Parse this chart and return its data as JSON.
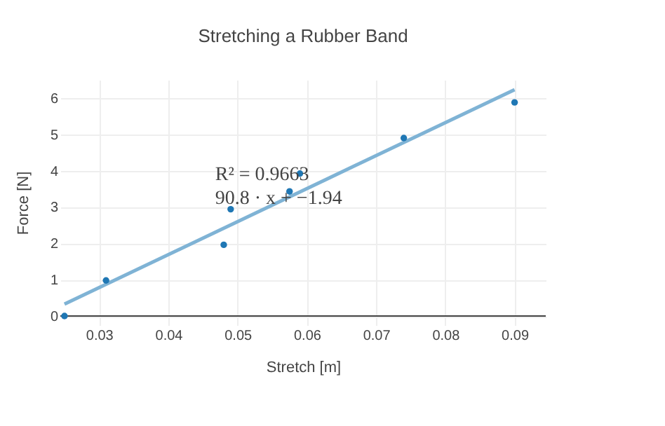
{
  "chart_data": {
    "type": "scatter",
    "title": "Stretching a Rubber Band",
    "xlabel": "Stretch [m]",
    "ylabel": "Force [N]",
    "x": [
      0.025,
      0.031,
      0.048,
      0.049,
      0.0575,
      0.059,
      0.074,
      0.09
    ],
    "series": [
      {
        "color": "#1f77b4",
        "marker": "circle",
        "values": [
          0,
          0.98,
          1.96,
          2.94,
          3.43,
          3.92,
          4.9,
          5.88
        ]
      },
      {
        "type": "line",
        "color": "#7fb3d5",
        "x": [
          0.025,
          0.09
        ],
        "values": [
          0.33,
          6.23
        ]
      }
    ],
    "annotations": [
      {
        "text": "R² = 0.9663\n90.8 · x + −1.94",
        "x": 0.0575,
        "y": 3.43
      }
    ],
    "xlim": [
      0.0244,
      0.0945
    ],
    "ylim": [
      -0.25,
      6.5
    ],
    "xticks": [
      0.03,
      0.04,
      0.05,
      0.06,
      0.07,
      0.08,
      0.09
    ],
    "yticks": [
      0,
      1,
      2,
      3,
      4,
      5,
      6
    ],
    "grid": true
  }
}
